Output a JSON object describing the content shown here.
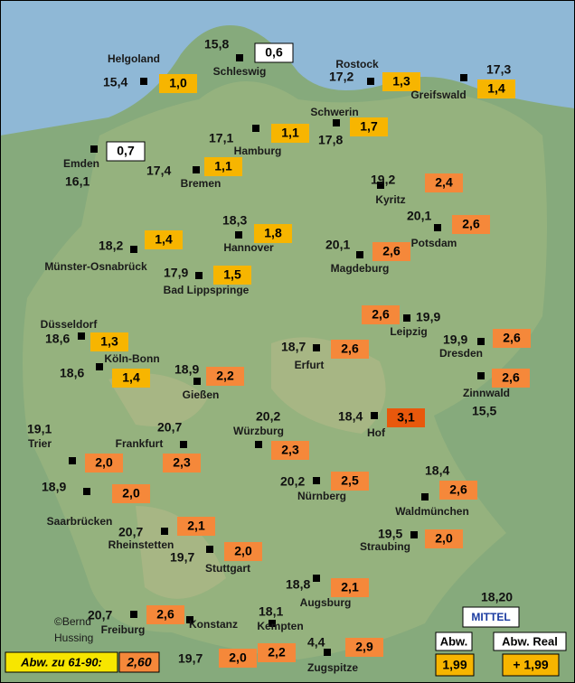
{
  "stations": [
    {
      "name": "Helgoland",
      "temp": "15,4",
      "anomaly": "1,0",
      "color": "#f7b500"
    },
    {
      "name": "Schleswig",
      "temp": "15,8",
      "anomaly": "0,6",
      "color": "#ffffff"
    },
    {
      "name": "Rostock",
      "temp": "17,2",
      "anomaly": "1,3",
      "color": "#f7b500"
    },
    {
      "name": "Greifswald",
      "temp": "17,3",
      "anomaly": "1,4",
      "color": "#f7b500"
    },
    {
      "name": "Schwerin",
      "temp": "17,8",
      "anomaly": "1,7",
      "color": "#f7b500"
    },
    {
      "name": "Hamburg",
      "temp": "17,1",
      "anomaly": "1,1",
      "color": "#f7b500"
    },
    {
      "name": "Emden",
      "temp": "16,1",
      "anomaly": "0,7",
      "color": "#ffffff"
    },
    {
      "name": "Bremen",
      "temp": "17,4",
      "anomaly": "1,1",
      "color": "#f7b500"
    },
    {
      "name": "Kyritz",
      "temp": "19,2",
      "anomaly": "2,4",
      "color": "#f5883a"
    },
    {
      "name": "Potsdam",
      "temp": "20,1",
      "anomaly": "2,6",
      "color": "#f5883a"
    },
    {
      "name": "Hannover",
      "temp": "18,3",
      "anomaly": "1,8",
      "color": "#f7b500"
    },
    {
      "name": "Münster-Osnabrück",
      "temp": "18,2",
      "anomaly": "1,4",
      "color": "#f7b500"
    },
    {
      "name": "Magdeburg",
      "temp": "20,1",
      "anomaly": "2,6",
      "color": "#f5883a"
    },
    {
      "name": "Bad Lippspringe",
      "temp": "17,9",
      "anomaly": "1,5",
      "color": "#f7b500"
    },
    {
      "name": "Leipzig",
      "temp": "19,9",
      "anomaly": "2,6",
      "color": "#f5883a"
    },
    {
      "name": "Düsseldorf",
      "temp": "18,6",
      "anomaly": "1,3",
      "color": "#f7b500"
    },
    {
      "name": "Erfurt",
      "temp": "18,7",
      "anomaly": "2,6",
      "color": "#f5883a"
    },
    {
      "name": "Dresden",
      "temp": "19,9",
      "anomaly": "2,6",
      "color": "#f5883a"
    },
    {
      "name": "Köln-Bonn",
      "temp": "18,6",
      "anomaly": "1,4",
      "color": "#f7b500"
    },
    {
      "name": "Gießen",
      "temp": "18,9",
      "anomaly": "2,2",
      "color": "#f5883a"
    },
    {
      "name": "Zinnwald",
      "temp": "15,5",
      "anomaly": "2,6",
      "color": "#f5883a"
    },
    {
      "name": "Hof",
      "temp": "18,4",
      "anomaly": "3,1",
      "color": "#e8580c"
    },
    {
      "name": "Trier",
      "temp": "19,1",
      "anomaly": "2,0",
      "color": "#f5883a"
    },
    {
      "name": "Frankfurt",
      "temp": "20,7",
      "anomaly": "2,3",
      "color": "#f5883a"
    },
    {
      "name": "Würzburg",
      "temp": "20,2",
      "anomaly": "2,3",
      "color": "#f5883a"
    },
    {
      "name": "Nürnberg",
      "temp": "20,2",
      "anomaly": "2,5",
      "color": "#f5883a"
    },
    {
      "name": "Saarbrücken",
      "temp": "18,9",
      "anomaly": "2,0",
      "color": "#f5883a"
    },
    {
      "name": "Waldmünchen",
      "temp": "18,4",
      "anomaly": "2,6",
      "color": "#f5883a"
    },
    {
      "name": "Rheinstetten",
      "temp": "20,7",
      "anomaly": "2,1",
      "color": "#f5883a"
    },
    {
      "name": "Straubing",
      "temp": "19,5",
      "anomaly": "2,0",
      "color": "#f5883a"
    },
    {
      "name": "Stuttgart",
      "temp": "19,7",
      "anomaly": "2,0",
      "color": "#f5883a"
    },
    {
      "name": "Augsburg",
      "temp": "18,8",
      "anomaly": "2,1",
      "color": "#f5883a"
    },
    {
      "name": "Freiburg",
      "temp": "20,7",
      "anomaly": "2,6",
      "color": "#f5883a"
    },
    {
      "name": "Konstanz",
      "temp": "19,7",
      "anomaly": "2,0",
      "color": "#f5883a"
    },
    {
      "name": "Kempten",
      "temp": "18,1",
      "anomaly": "2,2",
      "color": "#f5883a"
    },
    {
      "name": "Zugspitze",
      "temp": "4,4",
      "anomaly": "2,9",
      "color": "#f5883a"
    }
  ],
  "legend": {
    "label": "Abw. zu 61-90:",
    "mean_anomaly": "2,60",
    "mittel": "MITTEL",
    "mean_temp": "18,20",
    "abw": "Abw.",
    "abw_value": "1,99",
    "abw_real": "Abw. Real",
    "abw_real_value": "+ 1,99"
  },
  "credit": [
    "©Bernd",
    "Hussing"
  ]
}
